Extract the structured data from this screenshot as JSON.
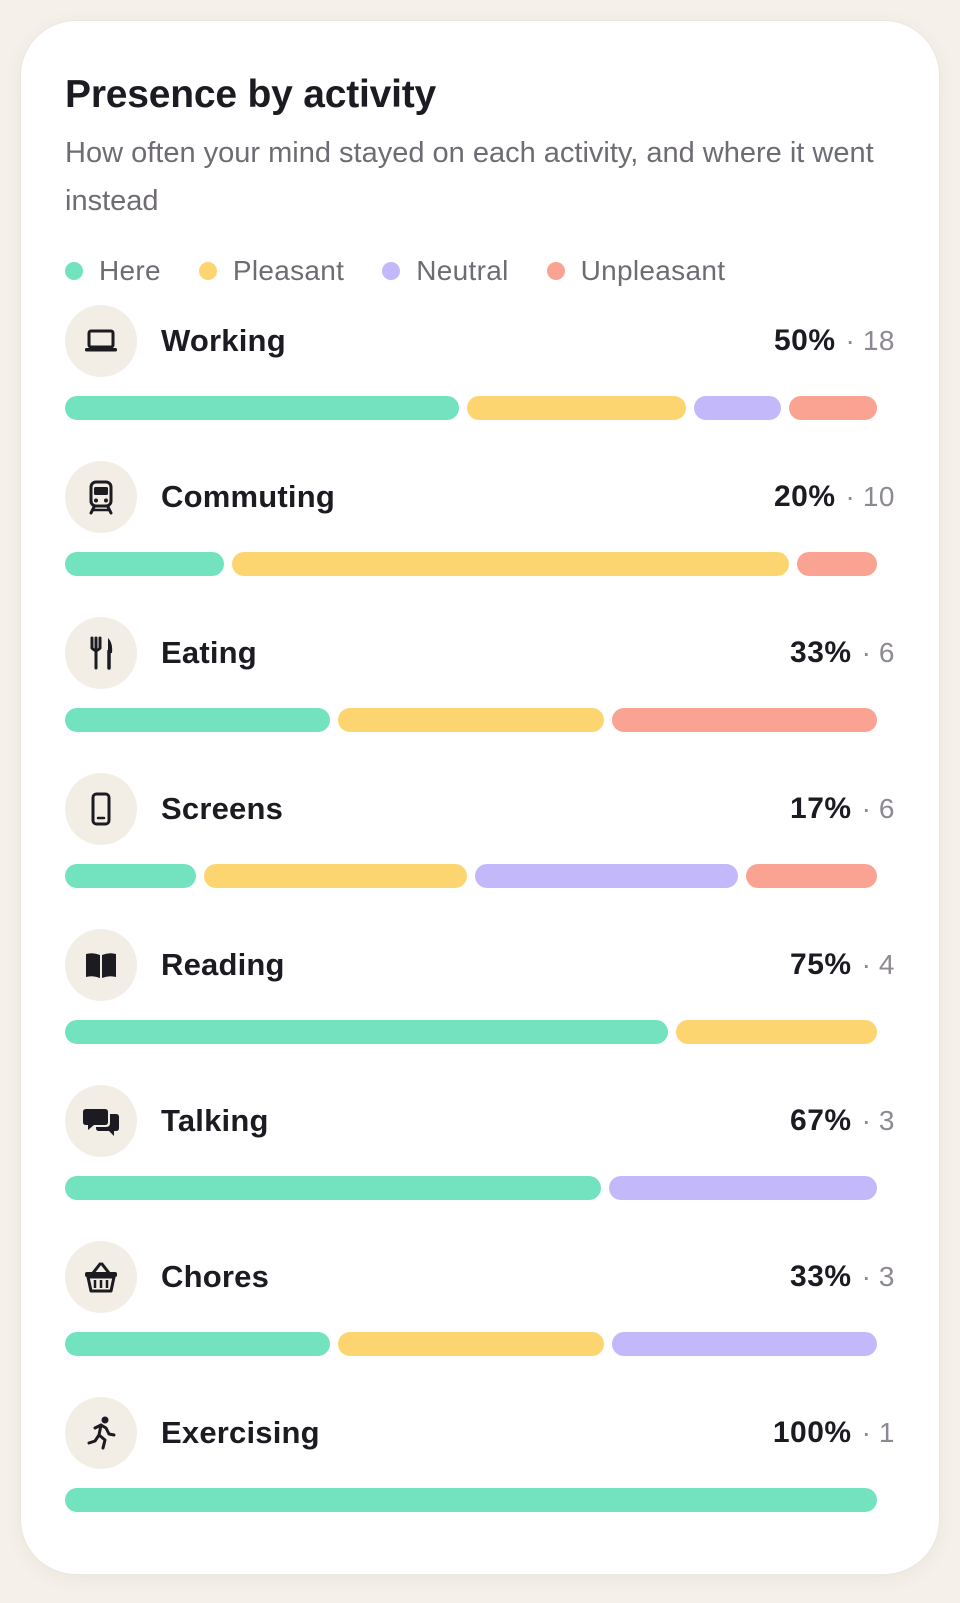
{
  "header": {
    "title": "Presence by activity",
    "subtitle": "How often your mind stayed on each activity, and where it went instead"
  },
  "legend": [
    {
      "label": "Here",
      "color": "#73e2bf"
    },
    {
      "label": "Pleasant",
      "color": "#fdd570"
    },
    {
      "label": "Neutral",
      "color": "#c2b8fa"
    },
    {
      "label": "Unpleasant",
      "color": "#fba392"
    }
  ],
  "activities": [
    {
      "label": "Working",
      "icon": "laptop-icon",
      "percent": "50%",
      "count": "18",
      "mix": {
        "here": 9,
        "pleasant": 5,
        "neutral": 2,
        "unpleasant": 2
      }
    },
    {
      "label": "Commuting",
      "icon": "train-icon",
      "percent": "20%",
      "count": "10",
      "mix": {
        "here": 2,
        "pleasant": 7,
        "neutral": 0,
        "unpleasant": 1
      }
    },
    {
      "label": "Eating",
      "icon": "fork-knife-icon",
      "percent": "33%",
      "count": "6",
      "mix": {
        "here": 2,
        "pleasant": 2,
        "neutral": 0,
        "unpleasant": 2
      }
    },
    {
      "label": "Screens",
      "icon": "phone-icon",
      "percent": "17%",
      "count": "6",
      "mix": {
        "here": 1,
        "pleasant": 2,
        "neutral": 2,
        "unpleasant": 1
      }
    },
    {
      "label": "Reading",
      "icon": "book-icon",
      "percent": "75%",
      "count": "4",
      "mix": {
        "here": 3,
        "pleasant": 1,
        "neutral": 0,
        "unpleasant": 0
      }
    },
    {
      "label": "Talking",
      "icon": "chat-bubbles-icon",
      "percent": "67%",
      "count": "3",
      "mix": {
        "here": 2,
        "pleasant": 0,
        "neutral": 1,
        "unpleasant": 0
      }
    },
    {
      "label": "Chores",
      "icon": "basket-icon",
      "percent": "33%",
      "count": "3",
      "mix": {
        "here": 1,
        "pleasant": 1,
        "neutral": 1,
        "unpleasant": 0
      }
    },
    {
      "label": "Exercising",
      "icon": "running-icon",
      "percent": "100%",
      "count": "1",
      "mix": {
        "here": 1,
        "pleasant": 0,
        "neutral": 0,
        "unpleasant": 0
      }
    }
  ],
  "separator": "·"
}
